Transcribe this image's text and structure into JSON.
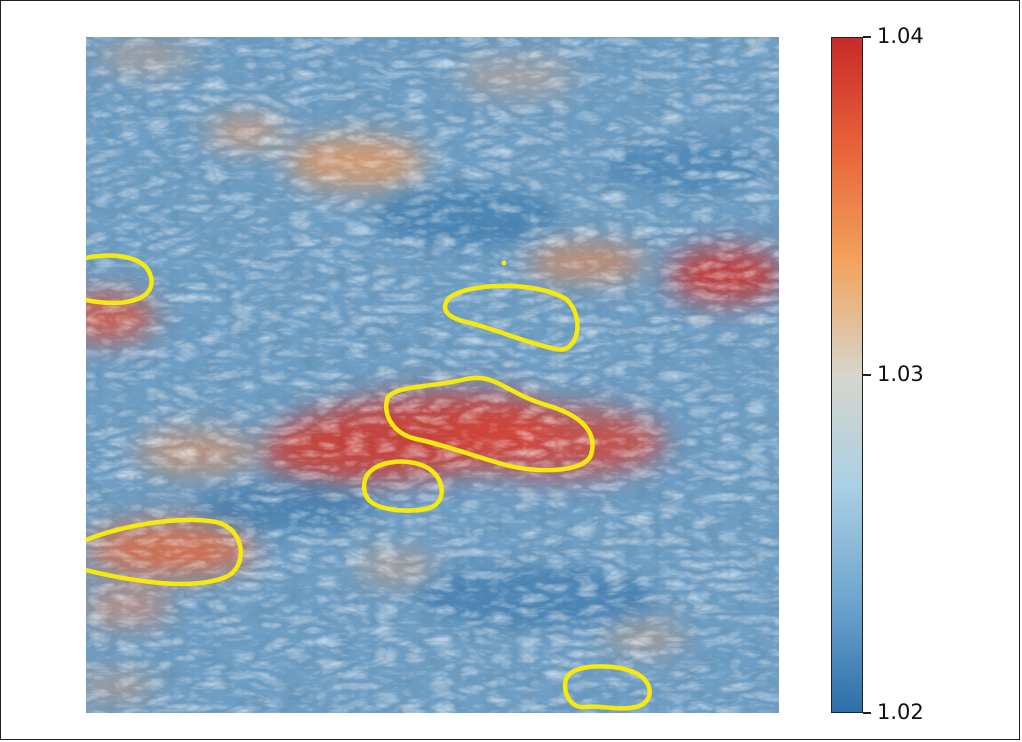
{
  "chart_data": {
    "type": "heatmap",
    "title": "",
    "xlabel": "",
    "ylabel": "",
    "colorbar": {
      "range": [
        1.02,
        1.04
      ],
      "ticks": [
        {
          "value": 1.04,
          "label": "1.04"
        },
        {
          "value": 1.03,
          "label": "1.03"
        },
        {
          "value": 1.02,
          "label": "1.02"
        }
      ],
      "colormap": [
        "#2c6fa8",
        "#6fa5cf",
        "#a9d0e4",
        "#d7d6cc",
        "#f2a35c",
        "#e8643a",
        "#c82a2a"
      ]
    },
    "overlay_color": "#f5e90e",
    "base_color": "#6f9ec4"
  }
}
